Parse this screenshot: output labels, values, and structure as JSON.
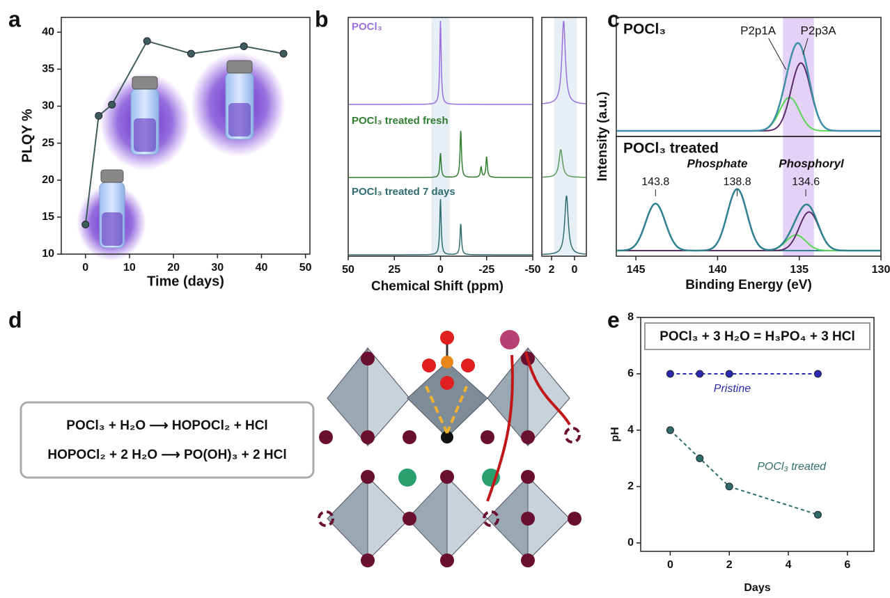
{
  "panel_labels": [
    "a",
    "b",
    "c",
    "d",
    "e"
  ],
  "diagram": {
    "equations": [
      "POCl₃ + H₂O ⟶ HOPOCl₂ + HCl",
      "HOPOCl₂ + 2 H₂O ⟶ PO(OH)₃ + 2 HCl"
    ]
  },
  "chart_data": [
    {
      "type": "line",
      "x_label": "Time (days)",
      "y_label": "PLQY %",
      "x": [
        0,
        3,
        6,
        14,
        24,
        36,
        45
      ],
      "values": [
        14,
        28.7,
        30.2,
        38.8,
        37.1,
        38.1,
        37.1
      ],
      "color": "#3f5c5c",
      "xlim": [
        -5.5,
        51
      ],
      "xticks": [
        0,
        10,
        20,
        30,
        40,
        50
      ],
      "ylim": [
        10,
        42
      ],
      "yticks": [
        10,
        15,
        20,
        25,
        30,
        35,
        40
      ]
    },
    {
      "type": "spectra",
      "x_label": "Chemical Shift (ppm)",
      "xlim": [
        50,
        -50
      ],
      "xticks": [
        50,
        25,
        0,
        -25,
        -50
      ],
      "span": [
        5,
        -5
      ],
      "series": [
        {
          "name": "POCl₃",
          "color": "#9b6fe0",
          "centers": [
            0
          ],
          "heights": [
            1.2
          ]
        },
        {
          "name": "POCl₃ treated fresh",
          "color": "#2f7d2f",
          "centers": [
            0,
            -11,
            -22,
            -25
          ],
          "heights": [
            0.35,
            0.68,
            0.15,
            0.3
          ]
        },
        {
          "name": "POCl₃ treated 7 days",
          "color": "#2e6b6e",
          "centers": [
            0,
            -11
          ],
          "heights": [
            0.8,
            0.45
          ]
        }
      ],
      "inset": {
        "xlim": [
          2.85,
          -1.03
        ],
        "xticks": [
          2,
          0
        ],
        "span": [
          1.8,
          -0.2
        ],
        "series": [
          {
            "color": "#9b6fe0",
            "centers": [
              0.95
            ],
            "heights": [
              1.2
            ]
          },
          {
            "color": "#5c9a5c",
            "centers": [
              1.2
            ],
            "heights": [
              0.4
            ]
          },
          {
            "color": "#2e6b6e",
            "centers": [
              0.7
            ],
            "heights": [
              0.85
            ]
          }
        ]
      }
    },
    {
      "type": "xps",
      "x_label": "Binding Energy (eV)",
      "y_label": "Intensity (a.u.)",
      "xlim": [
        146.2,
        130
      ],
      "xticks": [
        145,
        140,
        135,
        130
      ],
      "span": [
        136,
        134.1
      ],
      "panels": [
        {
          "title": "POCl₃",
          "envelope_color": "#3f8fa8",
          "components": [
            {
              "name": "P2p1A",
              "color": "#55d655",
              "center": 135.6,
              "height": 0.32
            },
            {
              "name": "P2p3A",
              "color": "#5a2a6a",
              "center": 134.9,
              "height": 0.65
            }
          ]
        },
        {
          "title": "POCl₃ treated",
          "envelope_color": "#2f8090",
          "annotations": [
            "Phosphate",
            "Phosphoryl"
          ],
          "peak_labels": [
            143.8,
            138.8,
            134.6
          ],
          "components": [
            {
              "color": "#2f8090",
              "center": 143.8,
              "height": 0.45
            },
            {
              "color": "#2f8090",
              "center": 138.8,
              "height": 0.59
            },
            {
              "color": "#55d655",
              "center": 135.2,
              "height": 0.15
            },
            {
              "color": "#5a2a6a",
              "center": 134.4,
              "height": 0.37
            }
          ]
        }
      ]
    },
    {
      "type": "line",
      "title": "POCl₃ + 3 H₂O = H₃PO₄ + 3 HCl",
      "x_label": "Days",
      "y_label": "pH",
      "x": [
        0,
        1,
        2,
        5
      ],
      "line_style": "dashed",
      "series": [
        {
          "name": "Pristine",
          "color": "#2a2ab0",
          "values": [
            6,
            6,
            6,
            6
          ]
        },
        {
          "name": "POCl₃ treated",
          "color": "#2e6b6b",
          "values": [
            4,
            3,
            2,
            1
          ]
        }
      ],
      "xlim": [
        -1,
        6.9
      ],
      "xticks": [
        0,
        2,
        4,
        6
      ],
      "ylim": [
        -0.3,
        8
      ],
      "yticks": [
        0,
        2,
        4,
        6,
        8
      ]
    }
  ]
}
